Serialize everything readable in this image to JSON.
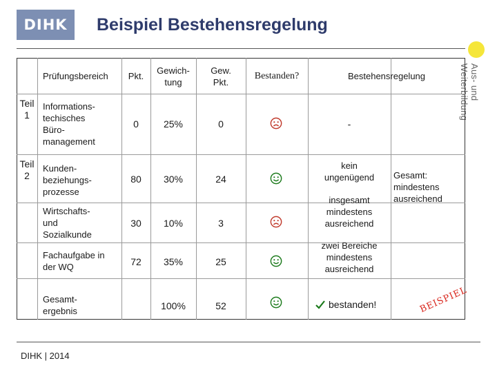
{
  "header": {
    "logo_text": "DIHK",
    "title": "Beispiel Bestehensregelung"
  },
  "sidebar_text": "Aus- und Weiterbildung",
  "table": {
    "headers": {
      "area": "Prüfungsbereich",
      "points": "Pkt.",
      "weight": "Gewich-\ntung",
      "weighted": "Gew.\nPkt.",
      "passed": "Bestanden?",
      "rule": "Bestehensregelung"
    },
    "parts": [
      {
        "label": "Teil\n1"
      },
      {
        "label": "Teil\n2"
      }
    ],
    "rows": [
      {
        "area": "Informations-\ntechisches\nBüro-\nmanagement",
        "points": "0",
        "weight": "25%",
        "weighted": "0",
        "passed": "sad",
        "rule": "-"
      },
      {
        "area": "Kunden-\nbeziehungs-\nprozesse",
        "points": "80",
        "weight": "30%",
        "weighted": "24",
        "passed": "happy"
      },
      {
        "area": "Wirtschafts-\nund\nSozialkunde",
        "points": "30",
        "weight": "10%",
        "weighted": "3",
        "passed": "sad"
      },
      {
        "area": "Fachaufgabe in\nder WQ",
        "points": "72",
        "weight": "35%",
        "weighted": "25",
        "passed": "happy"
      },
      {
        "area": "Gesamt-\nergebnis",
        "points": "",
        "weight": "100%",
        "weighted": "52",
        "passed": "happy"
      }
    ],
    "rules": {
      "kein": "kein\nungenügend",
      "insgesamt": "insgesamt\nmindestens\nausreichend",
      "zwei": "zwei Bereiche\nmindestens\nausreichend",
      "gesamt": "Gesamt:\nmindestens\nausreichend",
      "bestanden": "bestanden!"
    }
  },
  "stamp": "BEISPIEL",
  "footer": "DIHK | 2014",
  "colors": {
    "title": "#2e3b6b",
    "logo_bg": "#7d8fb3",
    "stamp": "#d9251c",
    "smiley": "#1b7a1b",
    "accent_dot": "#f5e63a"
  }
}
